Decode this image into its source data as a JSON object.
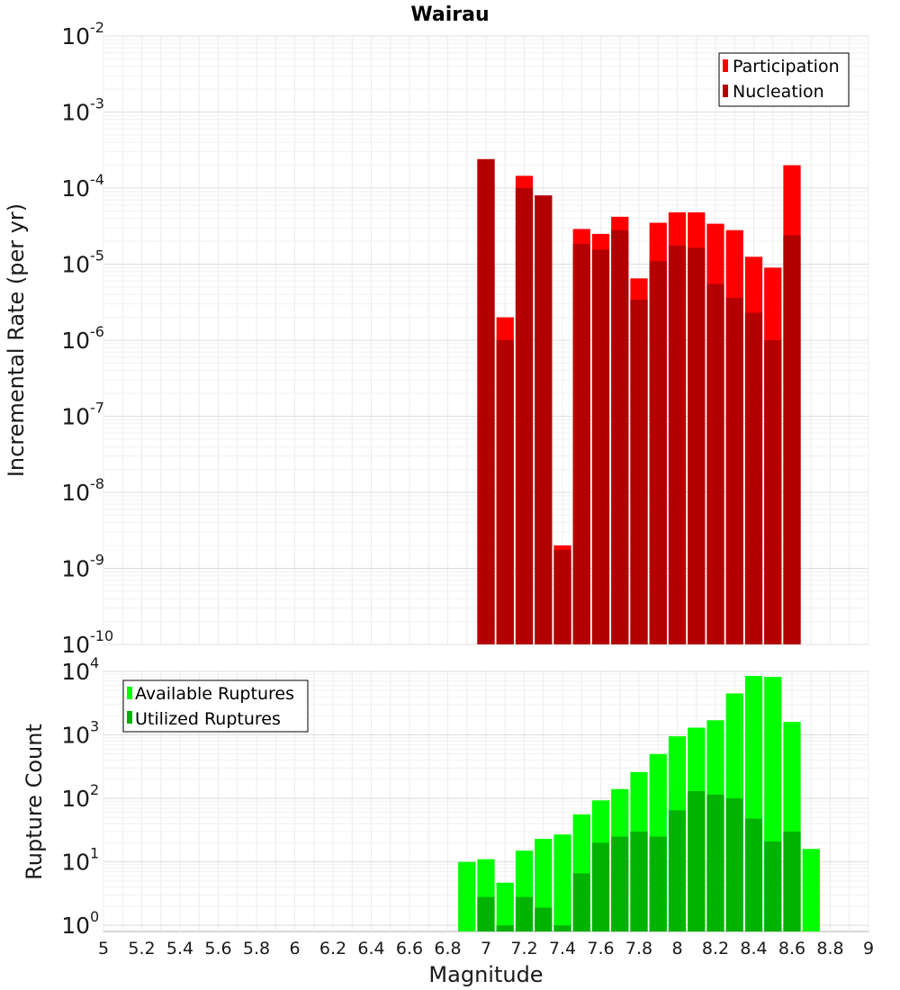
{
  "chart_data": [
    {
      "type": "bar",
      "title": "Wairau",
      "xlabel": "",
      "ylabel": "Incremental Rate (per yr)",
      "xlim": [
        5,
        9
      ],
      "ylim": [
        1e-10,
        0.01
      ],
      "yscale": "log",
      "grid": true,
      "legend_position": "top-right",
      "bin_width": 0.1,
      "x": [
        7.0,
        7.1,
        7.2,
        7.3,
        7.4,
        7.5,
        7.6,
        7.7,
        7.8,
        7.9,
        8.0,
        8.1,
        8.2,
        8.3,
        8.4,
        8.5,
        8.6
      ],
      "y_ticks": [
        {
          "base": "10",
          "exp": "-10",
          "value": 1e-10
        },
        {
          "base": "10",
          "exp": "-9",
          "value": 1e-09
        },
        {
          "base": "10",
          "exp": "-8",
          "value": 1e-08
        },
        {
          "base": "10",
          "exp": "-7",
          "value": 1e-07
        },
        {
          "base": "10",
          "exp": "-6",
          "value": 1e-06
        },
        {
          "base": "10",
          "exp": "-5",
          "value": 1e-05
        },
        {
          "base": "10",
          "exp": "-4",
          "value": 0.0001
        },
        {
          "base": "10",
          "exp": "-3",
          "value": 0.001
        },
        {
          "base": "10",
          "exp": "-2",
          "value": 0.01
        }
      ],
      "series": [
        {
          "name": "Participation",
          "color": "#ff0000",
          "values": [
            0.00024,
            2e-06,
            0.000145,
            8e-05,
            2e-09,
            2.9e-05,
            2.5e-05,
            4.2e-05,
            6.5e-06,
            3.5e-05,
            4.8e-05,
            4.8e-05,
            3.4e-05,
            2.8e-05,
            1.25e-05,
            9e-06,
            0.0002
          ]
        },
        {
          "name": "Nucleation",
          "color": "#b30000",
          "values": [
            0.00024,
            1e-06,
            0.0001,
            8e-05,
            1.75e-09,
            1.85e-05,
            1.55e-05,
            2.8e-05,
            3.4e-06,
            1.1e-05,
            1.75e-05,
            1.65e-05,
            5.5e-06,
            3.6e-06,
            2.3e-06,
            1e-06,
            2.4e-05
          ]
        }
      ]
    },
    {
      "type": "bar",
      "title": "",
      "xlabel": "Magnitude",
      "ylabel": "Rupture Count",
      "xlim": [
        5,
        9
      ],
      "ylim": [
        0.8,
        10000
      ],
      "yscale": "log",
      "grid": true,
      "legend_position": "top-left",
      "bin_width": 0.1,
      "x": [
        6.9,
        7.0,
        7.1,
        7.2,
        7.3,
        7.4,
        7.5,
        7.6,
        7.7,
        7.8,
        7.9,
        8.0,
        8.1,
        8.2,
        8.3,
        8.4,
        8.5,
        8.6,
        8.7
      ],
      "y_ticks": [
        {
          "base": "10",
          "exp": "0",
          "value": 1
        },
        {
          "base": "10",
          "exp": "1",
          "value": 10
        },
        {
          "base": "10",
          "exp": "2",
          "value": 100
        },
        {
          "base": "10",
          "exp": "3",
          "value": 1000
        },
        {
          "base": "10",
          "exp": "4",
          "value": 10000
        }
      ],
      "x_ticks": [
        "5",
        "5.2",
        "5.4",
        "5.6",
        "5.8",
        "6",
        "6.2",
        "6.4",
        "6.6",
        "6.8",
        "7",
        "7.2",
        "7.4",
        "7.6",
        "7.8",
        "8",
        "8.2",
        "8.4",
        "8.6",
        "8.8",
        "9"
      ],
      "series": [
        {
          "name": "Available Ruptures",
          "color": "#00ff00",
          "values": [
            10,
            11,
            4.7,
            15,
            23,
            27,
            56,
            93,
            140,
            260,
            500,
            950,
            1300,
            1700,
            4500,
            8500,
            8200,
            1600,
            16
          ]
        },
        {
          "name": "Utilized Ruptures",
          "color": "#00b300",
          "values": [
            0,
            2.8,
            1.0,
            2.8,
            1.9,
            1.0,
            6.6,
            20,
            25,
            30,
            25,
            65,
            130,
            115,
            100,
            48,
            21,
            30,
            0
          ]
        }
      ]
    }
  ]
}
